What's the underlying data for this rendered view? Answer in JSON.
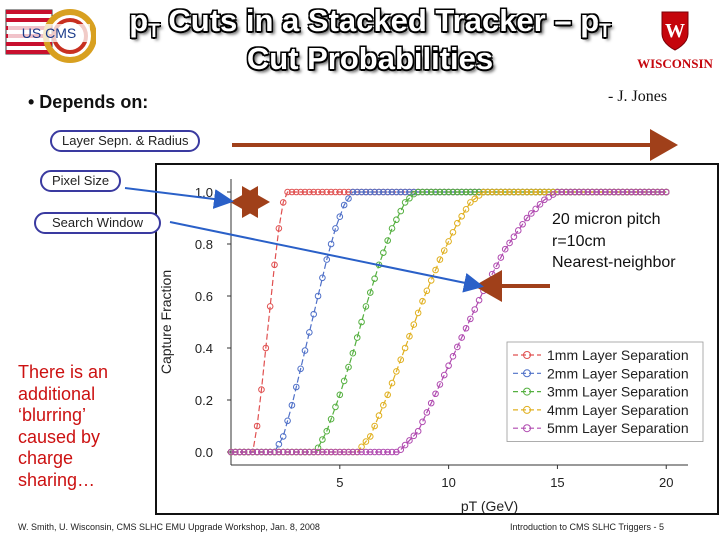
{
  "slide": {
    "title_main": "p",
    "title_sub": "T",
    "title_mid": " Cuts in a Stacked Tracker – p",
    "title_sub2": "T",
    "title_line2": "Cut Probabilities",
    "logo_left_text": "US CMS",
    "logo_right_text": "WISCONSIN",
    "bullet": "• Depends on:",
    "author": "- J. Jones",
    "labels": {
      "layer": "Layer Sepn. & Radius",
      "pixel": "Pixel Size",
      "search": "Search Window"
    },
    "side_note": "There is an additional ‘blurring’ caused by charge sharing…",
    "chart_note": [
      "20 micron pitch",
      "r=10cm",
      "Nearest-neighbor"
    ],
    "footer_left": "W. Smith, U. Wisconsin, CMS SLHC EMU Upgrade Workshop, Jan. 8, 2008",
    "footer_right": "Introduction to CMS SLHC Triggers - 5"
  },
  "colors": {
    "arrow": "#a0401a",
    "bubble_border": "#3a3aa0",
    "side_text": "#cc1111"
  },
  "chart_data": {
    "type": "line",
    "xlabel": "pT (GeV)",
    "ylabel": "Capture Fraction",
    "xlim": [
      0,
      21
    ],
    "ylim": [
      -0.05,
      1.05
    ],
    "xticks": [
      5,
      10,
      15,
      20
    ],
    "yticks": [
      0.0,
      0.2,
      0.4,
      0.6,
      0.8,
      1.0
    ],
    "ytick_labels": [
      "0.0",
      "0.2",
      "0.4",
      "0.6",
      "0.8",
      "1.0"
    ],
    "legend": "bottom-right",
    "series": [
      {
        "name": "1mm Layer Separation",
        "color": "#e05050",
        "x": [
          0,
          1,
          1.2,
          1.4,
          1.6,
          1.8,
          2,
          2.2,
          2.4,
          2.6,
          3,
          20
        ],
        "values": [
          0,
          0,
          0.1,
          0.24,
          0.4,
          0.56,
          0.72,
          0.86,
          0.96,
          1,
          1,
          1
        ]
      },
      {
        "name": "2mm Layer Separation",
        "color": "#4f70c8",
        "x": [
          0,
          2,
          2.4,
          2.8,
          3.2,
          3.6,
          4,
          4.4,
          4.8,
          5.2,
          5.6,
          6,
          20
        ],
        "values": [
          0,
          0,
          0.06,
          0.18,
          0.32,
          0.46,
          0.6,
          0.74,
          0.86,
          0.95,
          1,
          1,
          1
        ]
      },
      {
        "name": "3mm Layer Separation",
        "color": "#55b040",
        "x": [
          0,
          3.9,
          4.4,
          5,
          5.6,
          6.2,
          6.8,
          7.4,
          8,
          8.5,
          20
        ],
        "values": [
          0,
          0,
          0.08,
          0.22,
          0.38,
          0.56,
          0.72,
          0.86,
          0.96,
          1,
          1
        ]
      },
      {
        "name": "4mm Layer Separation",
        "color": "#e0b020",
        "x": [
          0,
          5.8,
          6.4,
          7.2,
          8,
          8.8,
          9.6,
          10.4,
          11,
          11.6,
          20
        ],
        "values": [
          0,
          0,
          0.06,
          0.22,
          0.4,
          0.58,
          0.74,
          0.88,
          0.96,
          1,
          1
        ]
      },
      {
        "name": "5mm Layer Separation",
        "color": "#b04ab0",
        "x": [
          0,
          7.7,
          8.6,
          9.6,
          10.6,
          11.6,
          12.6,
          13.6,
          14.4,
          15,
          20
        ],
        "values": [
          0,
          0,
          0.08,
          0.26,
          0.44,
          0.62,
          0.78,
          0.9,
          0.97,
          1,
          1
        ]
      }
    ]
  }
}
